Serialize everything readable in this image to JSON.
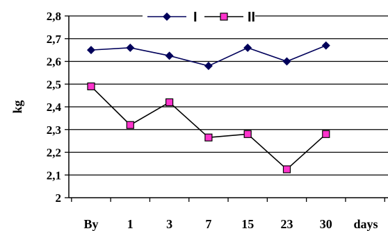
{
  "chart_data": {
    "type": "line",
    "title": "",
    "xlabel": "days",
    "ylabel": "kg",
    "categories": [
      "By",
      "1",
      "3",
      "7",
      "15",
      "23",
      "30"
    ],
    "yticks": [
      "2",
      "2,1",
      "2,2",
      "2,3",
      "2,4",
      "2,5",
      "2,6",
      "2,7",
      "2,8"
    ],
    "ylim": [
      2.0,
      2.8
    ],
    "grid": "horizontal",
    "legend_position": "top",
    "series": [
      {
        "name": "I",
        "color": "#00005a",
        "marker": "diamond",
        "values": [
          2.65,
          2.66,
          2.625,
          2.58,
          2.66,
          2.6,
          2.67
        ]
      },
      {
        "name": "II",
        "color": "#000000",
        "marker_fill": "#ff33cc",
        "marker": "square",
        "values": [
          2.49,
          2.32,
          2.42,
          2.265,
          2.28,
          2.125,
          2.28
        ]
      }
    ]
  }
}
